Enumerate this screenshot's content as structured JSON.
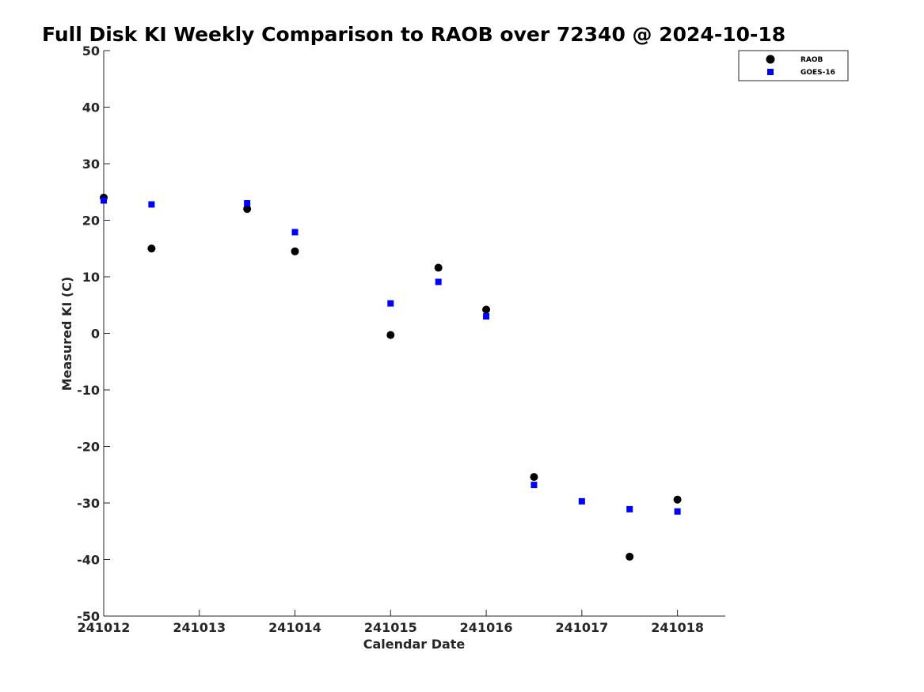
{
  "chart_data": {
    "type": "scatter",
    "title": "Full Disk KI Weekly Comparison to RAOB over 72340 @ 2024-10-18",
    "xlabel": "Calendar Date",
    "ylabel": "Measured KI (C)",
    "xlim": [
      0,
      6.5
    ],
    "ylim": [
      -50,
      50
    ],
    "x_tick_values": [
      0,
      1,
      2,
      3,
      4,
      5,
      6
    ],
    "x_tick_labels": [
      "241012",
      "241013",
      "241014",
      "241015",
      "241016",
      "241017",
      "241018"
    ],
    "y_ticks": [
      50,
      40,
      30,
      20,
      10,
      0,
      -10,
      -20,
      -30,
      -40,
      -50
    ],
    "y_tick_labels": [
      "50",
      "40",
      "30",
      "20",
      "10",
      "0",
      "-10",
      "-20",
      "-30",
      "-40",
      "-50"
    ],
    "grid": false,
    "legend_position": "top-right",
    "series": [
      {
        "name": "RAOB",
        "marker": "circle",
        "color": "#000000",
        "x": [
          0,
          0.5,
          1.5,
          2,
          3,
          3.5,
          4,
          4.5,
          5.5,
          6
        ],
        "y": [
          24.0,
          15.0,
          22.0,
          14.5,
          -0.3,
          11.6,
          4.2,
          -25.4,
          -39.5,
          -29.4
        ]
      },
      {
        "name": "GOES-16",
        "marker": "square",
        "color": "#0000ff",
        "x": [
          0,
          0.5,
          1.5,
          2,
          3,
          3.5,
          4,
          4.5,
          5,
          5.5,
          6
        ],
        "y": [
          23.5,
          22.8,
          23.0,
          17.9,
          5.3,
          9.1,
          3.0,
          -26.8,
          -29.7,
          -31.1,
          -31.5
        ]
      }
    ]
  }
}
